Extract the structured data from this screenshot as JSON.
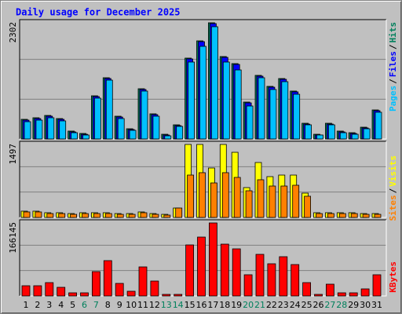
{
  "title": "Daily usage for December 2025",
  "categories": [
    1,
    2,
    3,
    4,
    5,
    6,
    7,
    8,
    9,
    10,
    11,
    12,
    13,
    14,
    15,
    16,
    17,
    18,
    19,
    20,
    21,
    22,
    23,
    24,
    25,
    26,
    27,
    28,
    29,
    30,
    31
  ],
  "category_colors": [
    "#000000",
    "#000000",
    "#000000",
    "#000000",
    "#000000",
    "#00805c",
    "#00805c",
    "#000000",
    "#000000",
    "#000000",
    "#000000",
    "#000000",
    "#00805c",
    "#00805c",
    "#000000",
    "#000000",
    "#000000",
    "#000000",
    "#000000",
    "#00805c",
    "#00805c",
    "#000000",
    "#000000",
    "#000000",
    "#000000",
    "#000000",
    "#00805c",
    "#00805c",
    "#000000",
    "#000000",
    "#000000"
  ],
  "legend_separator": "/",
  "chart_data": [
    {
      "type": "bar",
      "ylim": [
        0,
        2302
      ],
      "yticks": [
        2302
      ],
      "series": [
        {
          "name": "Hits",
          "color": "#00805c",
          "values": [
            389,
            420,
            466,
            404,
            156,
            109,
            855,
            1213,
            451,
            202,
            995,
            498,
            93,
            280,
            1602,
            1944,
            2302,
            1633,
            1493,
            731,
            1260,
            1042,
            1197,
            949,
            311,
            93,
            311,
            156,
            124,
            233,
            575
          ]
        },
        {
          "name": "Files",
          "color": "#0000ff",
          "values": [
            373,
            404,
            451,
            389,
            140,
            93,
            840,
            1198,
            435,
            187,
            980,
            482,
            78,
            264,
            1586,
            1928,
            2286,
            1617,
            1477,
            715,
            1244,
            1026,
            1182,
            933,
            295,
            78,
            295,
            140,
            109,
            218,
            560
          ]
        },
        {
          "name": "Pages",
          "color": "#00c0ff",
          "values": [
            342,
            373,
            420,
            358,
            124,
            78,
            809,
            1166,
            404,
            171,
            949,
            451,
            62,
            249,
            1524,
            1835,
            2224,
            1524,
            1368,
            653,
            1213,
            980,
            1135,
            886,
            280,
            78,
            280,
            124,
            93,
            202,
            529
          ]
        }
      ]
    },
    {
      "type": "bar",
      "ylim": [
        0,
        1497
      ],
      "yticks": [
        1497
      ],
      "series": [
        {
          "name": "Visits",
          "color": "#ffff00",
          "values": [
            129,
            129,
            97,
            97,
            80,
            97,
            97,
            97,
            80,
            80,
            113,
            80,
            64,
            193,
            1497,
            1497,
            1014,
            1497,
            1336,
            612,
            1127,
            837,
            869,
            869,
            499,
            97,
            97,
            97,
            97,
            80,
            80
          ]
        },
        {
          "name": "Sites",
          "color": "#ff8000",
          "values": [
            113,
            113,
            80,
            80,
            64,
            80,
            80,
            80,
            64,
            64,
            97,
            64,
            48,
            193,
            869,
            918,
            708,
            918,
            821,
            547,
            773,
            644,
            644,
            660,
            435,
            80,
            80,
            80,
            80,
            64,
            64
          ]
        }
      ]
    },
    {
      "type": "bar",
      "ylim": [
        0,
        166145
      ],
      "yticks": [
        166145
      ],
      "series": [
        {
          "name": "KBytes",
          "color": "#ff0000",
          "values": [
            23225,
            23225,
            30370,
            19652,
            7146,
            7146,
            55382,
            80393,
            28584,
            10719,
            66101,
            33944,
            3573,
            3573,
            116123,
            133988,
            166145,
            117909,
            107190,
            48236,
            94685,
            73247,
            89325,
            71460,
            30370,
            3573,
            26798,
            7146,
            7146,
            16079,
            48236
          ]
        }
      ]
    }
  ]
}
